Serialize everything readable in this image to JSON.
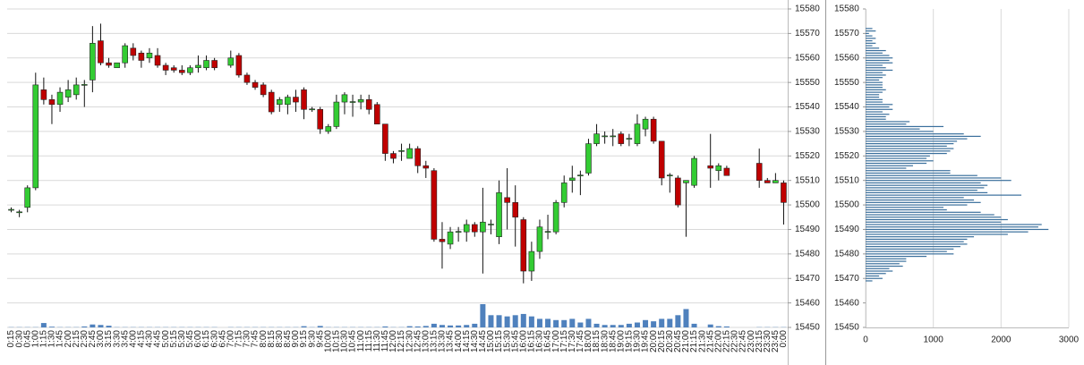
{
  "chart_data": [
    {
      "type": "candlestick",
      "categories": [
        "0:15",
        "0:30",
        "0:45",
        "1:00",
        "1:15",
        "1:30",
        "1:45",
        "2:00",
        "2:15",
        "2:30",
        "2:45",
        "3:00",
        "3:15",
        "3:30",
        "3:45",
        "4:00",
        "4:15",
        "4:30",
        "4:45",
        "5:00",
        "5:15",
        "5:30",
        "5:45",
        "6:00",
        "6:15",
        "6:30",
        "6:45",
        "7:00",
        "7:15",
        "7:30",
        "7:45",
        "8:00",
        "8:15",
        "8:30",
        "8:45",
        "9:00",
        "9:15",
        "9:30",
        "9:45",
        "10:00",
        "10:15",
        "10:30",
        "10:45",
        "11:00",
        "11:15",
        "11:30",
        "11:45",
        "12:00",
        "12:15",
        "12:30",
        "12:45",
        "13:00",
        "13:15",
        "13:30",
        "13:45",
        "14:00",
        "14:15",
        "14:30",
        "14:45",
        "15:00",
        "15:15",
        "15:30",
        "15:45",
        "16:00",
        "16:15",
        "16:30",
        "16:45",
        "17:00",
        "17:15",
        "17:30",
        "17:45",
        "18:00",
        "18:15",
        "18:30",
        "18:45",
        "19:00",
        "19:15",
        "19:30",
        "19:45",
        "20:00",
        "20:15",
        "20:30",
        "20:45",
        "21:00",
        "21:15",
        "21:30",
        "21:45",
        "22:00",
        "22:15",
        "22:30",
        "22:45",
        "23:00",
        "23:15",
        "23:30",
        "23:45",
        "0:00"
      ],
      "open": [
        15498,
        15497,
        15499,
        15507,
        15547,
        15543,
        15541,
        15544,
        15545,
        15549,
        15551,
        15567,
        15558,
        15556,
        15558,
        15564,
        15562,
        15560,
        15561,
        15557,
        15556,
        15555,
        15554,
        15556,
        15556,
        15559,
        null,
        15557,
        15561,
        15553,
        15550,
        15549,
        15546,
        15541,
        15541,
        15544,
        15547,
        15539,
        15539,
        15530,
        15532,
        15542,
        15542,
        15542,
        15543,
        15541,
        15533,
        15521,
        15522,
        15519,
        15523,
        15516,
        15514,
        15486,
        15484,
        15489,
        15489,
        15492,
        15489,
        15492,
        15487,
        15503,
        15501,
        15494,
        15473,
        15481,
        15489,
        15489,
        15501,
        15510,
        15512,
        15513,
        15525,
        15528,
        15528,
        15529,
        15527,
        15525,
        15531,
        15535,
        15526,
        15512,
        15511,
        15509,
        15508,
        null,
        15516,
        15514,
        15515,
        null,
        null,
        null,
        15517,
        15510,
        15509,
        15509
      ],
      "high": [
        15499,
        15498,
        15508,
        15554,
        15552,
        15545,
        15548,
        15551,
        15552,
        15551,
        15573,
        15574,
        15560,
        15558,
        15566,
        15566,
        15563,
        15564,
        15564,
        15558,
        15557,
        15557,
        15557,
        15561,
        15561,
        15560,
        null,
        15563,
        15562,
        15554,
        15551,
        15550,
        15547,
        15544,
        15545,
        15547,
        15548,
        15540,
        15540,
        15533,
        15545,
        15546,
        15545,
        15545,
        15545,
        15542,
        15533,
        15522,
        15525,
        15525,
        15524,
        15518,
        15515,
        15493,
        15491,
        15491,
        15494,
        15493,
        15507,
        15494,
        15510,
        15515,
        15508,
        15495,
        15485,
        15494,
        15496,
        15502,
        15512,
        15516,
        15514,
        15527,
        15533,
        15530,
        15531,
        15530,
        15529,
        15537,
        15536,
        15536,
        15526,
        15513,
        15512,
        15510,
        15520,
        null,
        15529,
        15517,
        15516,
        null,
        null,
        null,
        15523,
        15511,
        15513,
        15510
      ],
      "low": [
        15497,
        15495,
        15497,
        15506,
        15541,
        15533,
        15538,
        15542,
        15543,
        15540,
        15546,
        15557,
        15556,
        15556,
        15556,
        15559,
        15556,
        15558,
        15556,
        15553,
        15554,
        15553,
        15553,
        15554,
        15555,
        15555,
        null,
        15556,
        15552,
        15549,
        15547,
        15544,
        15537,
        15538,
        15537,
        15538,
        15535,
        15538,
        15529,
        15529,
        15531,
        15537,
        15536,
        15539,
        15537,
        15533,
        15518,
        15517,
        15518,
        15519,
        15513,
        15511,
        15485,
        15474,
        15482,
        15485,
        15485,
        15487,
        15472,
        15488,
        15484,
        15490,
        15483,
        15468,
        15469,
        15478,
        15486,
        15488,
        15499,
        15505,
        15504,
        15512,
        15524,
        15525,
        15524,
        15524,
        15524,
        15524,
        15528,
        15525,
        15508,
        15505,
        15499,
        15487,
        15507,
        null,
        15507,
        15510,
        15512,
        null,
        null,
        null,
        15507,
        15509,
        15509,
        15492
      ],
      "close": [
        15498,
        15497,
        15507,
        15549,
        15543,
        15541,
        15546,
        15547,
        15549,
        15549,
        15566,
        15558,
        15557,
        15558,
        15565,
        15561,
        15559,
        15562,
        15557,
        15555,
        15555,
        15554,
        15556,
        15557,
        15559,
        15556,
        null,
        15560,
        15553,
        15550,
        15548,
        15545,
        15538,
        15543,
        15544,
        15542,
        15539,
        15539,
        15531,
        15532,
        15542,
        15545,
        15542,
        15543,
        15539,
        15533,
        15521,
        15519,
        15522,
        15523,
        15516,
        15515,
        15486,
        15485,
        15489,
        15489,
        15492,
        15489,
        15493,
        15492,
        15505,
        15501,
        15495,
        15473,
        15481,
        15491,
        15489,
        15501,
        15509,
        15511,
        15512,
        15525,
        15529,
        15528,
        15528,
        15525,
        15527,
        15533,
        15535,
        15526,
        15511,
        15512,
        15500,
        15510,
        15519,
        null,
        15515,
        15516,
        15512,
        null,
        null,
        null,
        15510,
        15509,
        15510,
        15501
      ],
      "volume": [
        0.1,
        0.1,
        0.1,
        0.1,
        1.8,
        0.3,
        0.1,
        0.1,
        0.1,
        0.4,
        1.2,
        1,
        0.7,
        0.1,
        0.1,
        0.1,
        0.1,
        0.1,
        0.1,
        0.1,
        0.1,
        0.1,
        0.1,
        0.1,
        0.1,
        0.1,
        null,
        0.1,
        0.1,
        0.1,
        0.1,
        0.1,
        0.1,
        0.1,
        0.1,
        0.1,
        0.5,
        0.1,
        0.6,
        0.1,
        0.1,
        0.1,
        0.1,
        0.1,
        0.1,
        0.1,
        0.4,
        0.1,
        0.1,
        0.5,
        0.4,
        0.6,
        1.5,
        1,
        0.8,
        0.8,
        1,
        1.5,
        9.5,
        5,
        5,
        4.5,
        5,
        5.5,
        4.5,
        3.5,
        3.5,
        3,
        3,
        3.5,
        2,
        3.5,
        1.5,
        1,
        1,
        1,
        1.5,
        2,
        3,
        2.5,
        3.5,
        3.5,
        5,
        7.5,
        1.5,
        null,
        1.2,
        0.5,
        0.4,
        null,
        null,
        null,
        0.1,
        0.1,
        0.1,
        0.1
      ],
      "ylim": [
        15450,
        15580
      ],
      "yticks": [
        15450,
        15460,
        15470,
        15480,
        15490,
        15500,
        15510,
        15520,
        15530,
        15540,
        15550,
        15560,
        15570,
        15580
      ],
      "grid": true,
      "up_color": "#33cc33",
      "down_color": "#c00000",
      "volume_color": "#4f81bd"
    },
    {
      "type": "barh",
      "y": [
        15469,
        15470,
        15471,
        15472,
        15473,
        15474,
        15475,
        15476,
        15477,
        15478,
        15479,
        15480,
        15481,
        15482,
        15483,
        15484,
        15485,
        15486,
        15487,
        15488,
        15489,
        15490,
        15491,
        15492,
        15493,
        15494,
        15495,
        15496,
        15497,
        15498,
        15499,
        15500,
        15501,
        15502,
        15503,
        15504,
        15505,
        15506,
        15507,
        15508,
        15509,
        15510,
        15511,
        15512,
        15513,
        15514,
        15515,
        15516,
        15517,
        15518,
        15519,
        15520,
        15521,
        15522,
        15523,
        15524,
        15525,
        15526,
        15527,
        15528,
        15529,
        15530,
        15531,
        15532,
        15533,
        15534,
        15535,
        15536,
        15537,
        15538,
        15539,
        15540,
        15541,
        15542,
        15543,
        15544,
        15545,
        15546,
        15547,
        15548,
        15549,
        15550,
        15551,
        15552,
        15553,
        15554,
        15555,
        15556,
        15557,
        15558,
        15559,
        15560,
        15561,
        15562,
        15563,
        15564,
        15565,
        15566,
        15567,
        15568,
        15569,
        15570,
        15571,
        15572
      ],
      "values": [
        100,
        250,
        200,
        300,
        400,
        350,
        550,
        500,
        600,
        600,
        900,
        1300,
        1200,
        1300,
        1400,
        1500,
        1450,
        1500,
        1600,
        2100,
        2400,
        2700,
        2550,
        2600,
        2000,
        2100,
        2000,
        1900,
        1700,
        1200,
        1150,
        1500,
        1700,
        1600,
        1450,
        2300,
        1800,
        1650,
        1750,
        1800,
        1700,
        2150,
        2000,
        1650,
        1250,
        1250,
        600,
        700,
        900,
        1000,
        900,
        950,
        1200,
        1250,
        1300,
        1200,
        1300,
        1350,
        1500,
        1700,
        1450,
        1000,
        800,
        1150,
        600,
        650,
        300,
        300,
        350,
        250,
        400,
        350,
        400,
        250,
        250,
        200,
        200,
        250,
        300,
        250,
        250,
        250,
        200,
        250,
        300,
        250,
        400,
        300,
        250,
        400,
        350,
        400,
        350,
        250,
        300,
        200,
        100,
        150,
        100,
        150,
        100,
        50,
        150,
        100
      ],
      "xlim": [
        0,
        3000
      ],
      "xticks": [
        0,
        1000,
        2000,
        3000
      ],
      "ylim": [
        15450,
        15580
      ],
      "yticks": [
        15450,
        15460,
        15470,
        15480,
        15490,
        15500,
        15510,
        15520,
        15530,
        15540,
        15550,
        15560,
        15570,
        15580
      ],
      "grid": true,
      "color": "#3a6f9c"
    }
  ]
}
